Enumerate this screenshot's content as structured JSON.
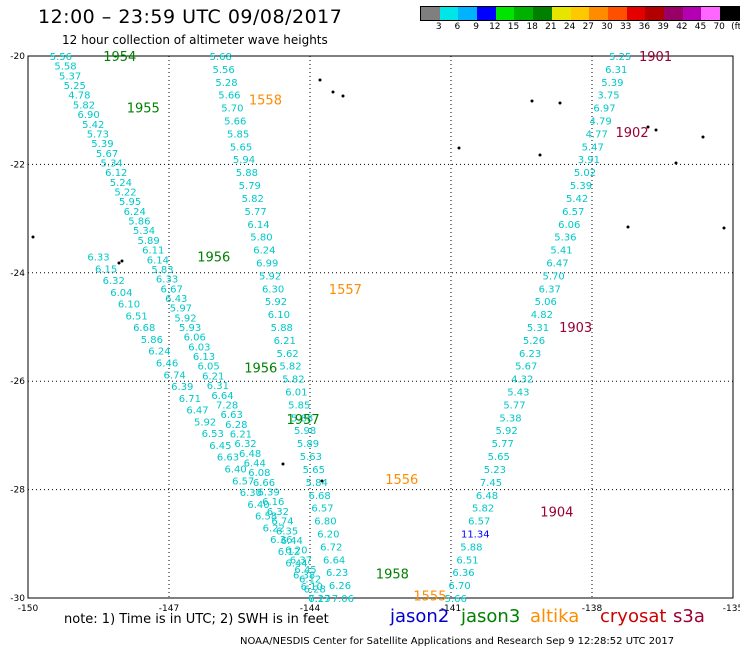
{
  "header": {
    "title": "12:00 – 23:59 UTC 09/08/2017",
    "subtitle": "12 hour collection of altimeter wave heights"
  },
  "colorbar": {
    "colors": [
      "#7f7f7f",
      "#00e5e5",
      "#00b2ff",
      "#0000ff",
      "#00e500",
      "#00b200",
      "#008000",
      "#e5e500",
      "#ffc800",
      "#ff8c00",
      "#ff5000",
      "#e50000",
      "#b20000",
      "#990066",
      "#b200b2",
      "#ff66ff",
      "#000000"
    ],
    "labels": [
      "3",
      "6",
      "9",
      "12",
      "15",
      "18",
      "21",
      "24",
      "27",
      "30",
      "33",
      "36",
      "39",
      "42",
      "45",
      "70",
      "(ft)"
    ]
  },
  "legend": {
    "note": "note: 1) Time is in UTC; 2) SWH is in feet",
    "satellites": [
      {
        "name": "jason2",
        "color": "#0000cc"
      },
      {
        "name": "jason3",
        "color": "#008000"
      },
      {
        "name": "altika",
        "color": "#ff8c00"
      },
      {
        "name": "cryosat",
        "color": "#cc0000"
      },
      {
        "name": "s3a",
        "color": "#990033"
      }
    ]
  },
  "credit": "NOAA/NESDIS Center for Satellite Applications and Research    Sep  9 12:28:52 UTC 2017",
  "chart_data": {
    "type": "scatter",
    "title": "12:00 – 23:59 UTC 09/08/2017",
    "subtitle": "12 hour collection of altimeter wave heights",
    "xlim": [
      -150,
      -135
    ],
    "ylim": [
      -30,
      -20
    ],
    "x_ticks": [
      "-150",
      "-147",
      "-144",
      "-141",
      "-138",
      "-135"
    ],
    "y_ticks": [
      "-20",
      "-22",
      "-24",
      "-26",
      "-28",
      "-30"
    ],
    "grid": true,
    "units": "ft",
    "tracks": [
      {
        "name": "s3a",
        "color": "#00c8c8",
        "from": [
          -149.3,
          -20.0
        ],
        "to": [
          -143.8,
          -30.0
        ],
        "values": [
          "5.56",
          "5.58",
          "5.37",
          "5.25",
          "4.78",
          "5.82",
          "6.90",
          "5.42",
          "5.73",
          "5.39",
          "5.67",
          "5.34",
          "6.12",
          "5.24",
          "5.22",
          "5.95",
          "6.24",
          "5.86",
          "5.34",
          "5.89",
          "6.11",
          "6.14",
          "5.83",
          "6.33",
          "6.67",
          "6.43",
          "5.97",
          "5.92",
          "5.93",
          "6.06",
          "6.03",
          "6.13",
          "6.05",
          "6.21",
          "6.31",
          "6.64",
          "7.28",
          "6.63",
          "6.28",
          "6.21",
          "6.32",
          "6.48",
          "6.44",
          "6.08",
          "6.66",
          "6.39",
          "6.16",
          "6.32",
          "6.74",
          "6.35",
          "6.44",
          "6.20",
          "6.37",
          "6.45",
          "6.12",
          "6.28",
          "7.13"
        ]
      },
      {
        "name": "altika",
        "color": "#00c8c8",
        "from": [
          -148.5,
          -23.7
        ],
        "to": [
          -143.8,
          -30.0
        ],
        "values": [
          "6.33",
          "6.15",
          "6.32",
          "6.04",
          "6.10",
          "6.51",
          "6.68",
          "5.86",
          "6.24",
          "6.46",
          "6.74",
          "6.39",
          "6.71",
          "6.47",
          "5.92",
          "6.53",
          "6.45",
          "6.63",
          "6.40",
          "6.57",
          "6.30",
          "6.40",
          "6.58",
          "6.22",
          "6.36",
          "6.12",
          "6.44",
          "6.38",
          "6.10",
          "6.27"
        ]
      },
      {
        "name": "cryosat",
        "color": "#00c8c8",
        "from": [
          -145.9,
          -20.0
        ],
        "to": [
          -143.3,
          -30.0
        ],
        "values": [
          "5.68",
          "5.56",
          "5.28",
          "5.66",
          "5.70",
          "5.66",
          "5.85",
          "5.65",
          "5.94",
          "5.88",
          "5.79",
          "5.82",
          "5.77",
          "6.14",
          "5.80",
          "6.24",
          "6.99",
          "5.92",
          "6.30",
          "5.92",
          "6.10",
          "5.88",
          "6.21",
          "5.62",
          "5.82",
          "5.82",
          "6.01",
          "5.85",
          "5.88",
          "5.98",
          "5.89",
          "5.63",
          "5.65",
          "5.84",
          "6.68",
          "6.57",
          "6.80",
          "6.20",
          "6.72",
          "6.64",
          "6.23",
          "6.26",
          "7.06"
        ]
      },
      {
        "name": "jason2",
        "color": "#00c8c8",
        "from": [
          -137.4,
          -20.0
        ],
        "to": [
          -140.9,
          -30.0
        ],
        "values": [
          "5.25",
          "6.31",
          "5.39",
          "3.75",
          "6.97",
          "4.79",
          "4.77",
          "5.47",
          "3.91",
          "5.02",
          "5.39",
          "5.42",
          "6.57",
          "6.06",
          "5.36",
          "5.41",
          "6.47",
          "5.70",
          "6.37",
          "5.06",
          "4.82",
          "5.31",
          "5.26",
          "6.23",
          "5.67",
          "4.32",
          "5.43",
          "5.77",
          "5.38",
          "5.92",
          "5.77",
          "5.65",
          "5.23",
          "7.45",
          "6.48",
          "5.82",
          "6.57",
          "11.34",
          "5.88",
          "6.51",
          "6.36",
          "6.70",
          "5.66"
        ]
      }
    ],
    "time_labels": [
      {
        "text": "1954",
        "x": -148.4,
        "y": -20.0,
        "color": "#008000"
      },
      {
        "text": "1955",
        "x": -147.9,
        "y": -20.95,
        "color": "#008000"
      },
      {
        "text": "1956",
        "x": -146.4,
        "y": -23.7,
        "color": "#008000"
      },
      {
        "text": "1956",
        "x": -145.4,
        "y": -25.75,
        "color": "#008000"
      },
      {
        "text": "1957",
        "x": -144.5,
        "y": -26.7,
        "color": "#008000"
      },
      {
        "text": "1958",
        "x": -142.6,
        "y": -29.55,
        "color": "#008000"
      },
      {
        "text": "1558",
        "x": -145.3,
        "y": -20.8,
        "color": "#ff8c00"
      },
      {
        "text": "1557",
        "x": -143.6,
        "y": -24.3,
        "color": "#ff8c00"
      },
      {
        "text": "1556",
        "x": -142.4,
        "y": -27.8,
        "color": "#ff8c00"
      },
      {
        "text": "1555",
        "x": -141.8,
        "y": -29.95,
        "color": "#ff8c00"
      },
      {
        "text": "1901",
        "x": -137.0,
        "y": -20.0,
        "color": "#990033"
      },
      {
        "text": "1902",
        "x": -137.5,
        "y": -21.4,
        "color": "#990033"
      },
      {
        "text": "1903",
        "x": -138.7,
        "y": -25.0,
        "color": "#990033"
      },
      {
        "text": "1904",
        "x": -139.1,
        "y": -28.4,
        "color": "#990033"
      }
    ]
  }
}
